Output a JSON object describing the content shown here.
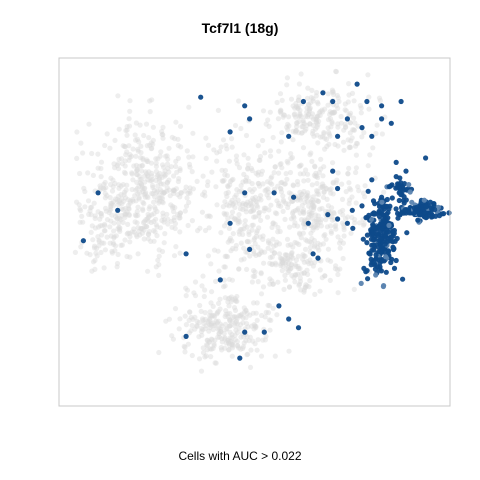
{
  "chart_data": {
    "type": "scatter",
    "title": "Tcf7l1 (18g)",
    "caption": "Cells with AUC > 0.022",
    "xlabel": "",
    "ylabel": "",
    "xlim": [
      -40,
      40
    ],
    "ylim": [
      -40,
      40
    ],
    "grid": false,
    "legend": "none",
    "axes_ticks": false,
    "colors": {
      "background_cells": "#d9d9d9",
      "highlighted_cells": "#0e4a8a",
      "highlighted_light": "#5b84b0",
      "panel_border": "#c8c8c8"
    },
    "series": [
      {
        "name": "",
        "role": "background",
        "point_groups": [
          {
            "center": [
              -22,
              10
            ],
            "spread": [
              10,
              14
            ],
            "n": 420
          },
          {
            "center": [
              -2,
              5
            ],
            "spread": [
              7,
              16
            ],
            "n": 260
          },
          {
            "center": [
              12,
              6
            ],
            "spread": [
              9,
              12
            ],
            "n": 300
          },
          {
            "center": [
              14,
              26
            ],
            "spread": [
              10,
              7
            ],
            "n": 220
          },
          {
            "center": [
              -6,
              -22
            ],
            "spread": [
              9,
              8
            ],
            "n": 260
          },
          {
            "center": [
              -30,
              2
            ],
            "spread": [
              6,
              9
            ],
            "n": 120
          },
          {
            "center": [
              8,
              -8
            ],
            "spread": [
              7,
              6
            ],
            "n": 120
          }
        ]
      },
      {
        "name": "",
        "role": "highlighted",
        "point_groups": [
          {
            "center": [
              26,
              -1
            ],
            "spread": [
              3,
              9
            ],
            "n": 230
          },
          {
            "center": [
              34,
              5
            ],
            "spread": [
              4,
              2
            ],
            "n": 110
          },
          {
            "center": [
              30,
              10
            ],
            "spread": [
              2,
              2
            ],
            "n": 30
          }
        ],
        "scattered_points": [
          [
            21,
            34
          ],
          [
            23,
            30
          ],
          [
            26,
            29
          ],
          [
            30,
            30
          ],
          [
            26,
            26
          ],
          [
            19,
            26
          ],
          [
            16,
            30
          ],
          [
            14,
            32
          ],
          [
            17,
            22
          ],
          [
            22,
            24
          ],
          [
            24,
            22
          ],
          [
            28,
            25
          ],
          [
            10,
            30
          ],
          [
            -11,
            31
          ],
          [
            -2,
            29
          ],
          [
            -1,
            26
          ],
          [
            -5,
            23
          ],
          [
            7,
            22
          ],
          [
            4,
            9
          ],
          [
            8,
            8
          ],
          [
            16,
            14
          ],
          [
            17,
            10
          ],
          [
            15,
            4
          ],
          [
            17,
            3
          ],
          [
            19,
            2
          ],
          [
            11,
            2
          ],
          [
            12,
            -5
          ],
          [
            13,
            -6
          ],
          [
            20,
            5
          ],
          [
            22,
            6
          ],
          [
            -5,
            2
          ],
          [
            -32,
            9
          ],
          [
            -28,
            5
          ],
          [
            -35,
            -2
          ],
          [
            -14,
            -5
          ],
          [
            -1,
            -4
          ],
          [
            -7,
            -11
          ],
          [
            5,
            -17
          ],
          [
            7,
            -20
          ],
          [
            -2,
            -23
          ],
          [
            2,
            -23
          ],
          [
            -14,
            -24
          ],
          [
            9,
            -22
          ],
          [
            -3,
            -29
          ],
          [
            26,
            8
          ],
          [
            29,
            16
          ],
          [
            31,
            14
          ],
          [
            35,
            17
          ],
          [
            -2,
            9
          ],
          [
            24,
            12
          ]
        ]
      }
    ]
  }
}
